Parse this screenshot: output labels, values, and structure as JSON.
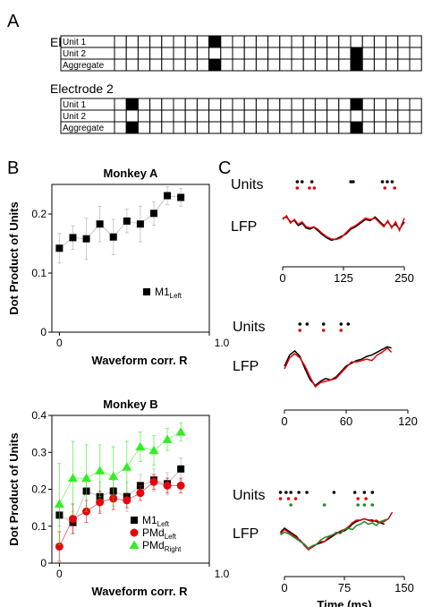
{
  "panel_labels": [
    "A",
    "B",
    "C"
  ],
  "panel_a": {
    "electrodes": [
      {
        "title": "Electrode 1",
        "rows": [
          {
            "label": "Unit 1",
            "filled": [
              8
            ]
          },
          {
            "label": "Unit 2",
            "filled": [
              20
            ]
          },
          {
            "label": "Aggregate",
            "filled": [
              8,
              20
            ]
          }
        ]
      },
      {
        "title": "Electrode 2",
        "rows": [
          {
            "label": "Unit 1",
            "filled": [
              1,
              20
            ]
          },
          {
            "label": "Unit 2",
            "filled": []
          },
          {
            "label": "Aggregate",
            "filled": [
              1,
              20
            ]
          }
        ]
      }
    ],
    "n_cells": 26
  },
  "chart_data": [
    {
      "type": "scatter",
      "title": "Monkey A",
      "xlabel": "Waveform corr. R",
      "ylabel": "Dot Product of Units",
      "xlim": [
        -0.05,
        1.0
      ],
      "ylim": [
        0,
        0.25
      ],
      "xticks": [
        "0",
        "1.0"
      ],
      "yticks": [
        "0",
        "0.1",
        "0.2"
      ],
      "series": [
        {
          "name": "M1",
          "name_sub": "Left",
          "color": "#000000",
          "marker": "square",
          "x": [
            0.0,
            0.09,
            0.18,
            0.27,
            0.36,
            0.45,
            0.54,
            0.63,
            0.72,
            0.81
          ],
          "y": [
            0.142,
            0.16,
            0.158,
            0.183,
            0.161,
            0.188,
            0.183,
            0.201,
            0.231,
            0.228
          ],
          "err": [
            0.025,
            0.02,
            0.035,
            0.03,
            0.03,
            0.02,
            0.03,
            0.02,
            0.015,
            0.015
          ]
        }
      ]
    },
    {
      "type": "scatter",
      "title": "Monkey B",
      "xlabel": "Waveform corr. R",
      "ylabel": "Dot Product of Units",
      "xlim": [
        -0.05,
        1.0
      ],
      "ylim": [
        0,
        0.4
      ],
      "xticks": [
        "0",
        "1.0"
      ],
      "yticks": [
        "0",
        "0.1",
        "0.2",
        "0.3",
        "0.4"
      ],
      "series": [
        {
          "name": "M1",
          "name_sub": "Left",
          "color": "#000000",
          "marker": "square",
          "x": [
            0.0,
            0.09,
            0.18,
            0.27,
            0.36,
            0.45,
            0.54,
            0.63,
            0.72,
            0.81
          ],
          "y": [
            0.13,
            0.11,
            0.195,
            0.18,
            0.195,
            0.18,
            0.21,
            0.225,
            0.215,
            0.255
          ],
          "err": [
            0.03,
            0.03,
            0.04,
            0.04,
            0.03,
            0.04,
            0.03,
            0.03,
            0.03,
            0.03
          ]
        },
        {
          "name": "PMd",
          "name_sub": "Left",
          "color": "#e8000b",
          "marker": "circle",
          "x": [
            0.0,
            0.09,
            0.18,
            0.27,
            0.36,
            0.45,
            0.54,
            0.63,
            0.72,
            0.81
          ],
          "y": [
            0.045,
            0.12,
            0.14,
            0.165,
            0.175,
            0.17,
            0.19,
            0.22,
            0.21,
            0.21
          ],
          "err": [
            0.04,
            0.04,
            0.03,
            0.03,
            0.03,
            0.02,
            0.02,
            0.02,
            0.02,
            0.02
          ]
        },
        {
          "name": "PMd",
          "name_sub": "Right",
          "color": "#33ee22",
          "marker": "triangle",
          "x": [
            0.0,
            0.09,
            0.18,
            0.27,
            0.36,
            0.45,
            0.54,
            0.63,
            0.72,
            0.81
          ],
          "y": [
            0.16,
            0.23,
            0.23,
            0.25,
            0.235,
            0.26,
            0.315,
            0.305,
            0.335,
            0.355
          ],
          "err": [
            0.11,
            0.1,
            0.09,
            0.07,
            0.08,
            0.07,
            0.04,
            0.04,
            0.03,
            0.025
          ]
        }
      ]
    },
    {
      "type": "line",
      "ylabel_units": "Units",
      "ylabel_lfp": "LFP",
      "xlim": [
        0,
        250
      ],
      "xticks": [
        "0",
        "125",
        "250"
      ],
      "units": [
        {
          "color": "#000000",
          "t": [
            30,
            40,
            60,
            140,
            145,
            205,
            215,
            225
          ]
        },
        {
          "color": "#e8000b",
          "t": [
            30,
            55,
            65,
            210,
            230
          ]
        }
      ],
      "lines": [
        {
          "color": "#000000",
          "t": [
            0,
            8,
            16,
            24,
            32,
            40,
            48,
            56,
            64,
            72,
            80,
            90,
            100,
            110,
            120,
            130,
            140,
            150,
            160,
            170,
            180,
            190,
            200,
            208,
            216,
            224,
            232,
            240,
            250
          ],
          "v": [
            0.45,
            0.5,
            0.3,
            0.35,
            0.15,
            0.25,
            0.05,
            0.0,
            0.08,
            -0.05,
            -0.2,
            -0.35,
            -0.45,
            -0.4,
            -0.3,
            -0.2,
            0.0,
            0.1,
            0.25,
            0.4,
            0.35,
            0.5,
            0.3,
            0.15,
            0.3,
            0.1,
            0.2,
            0.0,
            0.3
          ]
        },
        {
          "color": "#e8000b",
          "t": [
            0,
            8,
            16,
            24,
            32,
            40,
            48,
            56,
            64,
            72,
            80,
            90,
            100,
            110,
            120,
            130,
            140,
            150,
            160,
            170,
            180,
            190,
            200,
            208,
            216,
            224,
            232,
            240,
            250
          ],
          "v": [
            0.4,
            0.55,
            0.25,
            0.4,
            0.2,
            0.3,
            0.1,
            0.05,
            0.1,
            0.0,
            -0.15,
            -0.3,
            -0.4,
            -0.42,
            -0.35,
            -0.15,
            0.05,
            0.15,
            0.3,
            0.45,
            0.4,
            0.45,
            0.25,
            0.1,
            0.35,
            0.05,
            0.3,
            -0.05,
            0.45
          ]
        }
      ]
    },
    {
      "type": "line",
      "ylabel_units": "Units",
      "ylabel_lfp": "LFP",
      "xlim": [
        0,
        120
      ],
      "xticks": [
        "0",
        "60",
        "120"
      ],
      "units": [
        {
          "color": "#000000",
          "t": [
            15,
            22,
            38,
            55,
            62
          ]
        },
        {
          "color": "#e8000b",
          "t": [
            15,
            38,
            55
          ]
        }
      ],
      "lines": [
        {
          "color": "#000000",
          "t": [
            0,
            5,
            10,
            15,
            20,
            25,
            30,
            35,
            40,
            45,
            50,
            55,
            60,
            65,
            70,
            75,
            80,
            85,
            90,
            95,
            100,
            104
          ],
          "v": [
            0.1,
            0.5,
            0.65,
            0.45,
            0.0,
            -0.4,
            -0.6,
            -0.45,
            -0.35,
            -0.4,
            -0.3,
            -0.1,
            0.1,
            0.2,
            0.3,
            0.35,
            0.45,
            0.5,
            0.6,
            0.7,
            0.8,
            0.75
          ]
        },
        {
          "color": "#e8000b",
          "t": [
            0,
            5,
            10,
            15,
            20,
            25,
            30,
            35,
            40,
            45,
            50,
            55,
            60,
            65,
            70,
            75,
            80,
            85,
            90,
            95,
            100,
            104
          ],
          "v": [
            0.0,
            0.4,
            0.55,
            0.4,
            0.1,
            -0.3,
            -0.65,
            -0.5,
            -0.45,
            -0.4,
            -0.35,
            -0.15,
            0.05,
            0.25,
            0.25,
            0.3,
            0.35,
            0.3,
            0.5,
            0.6,
            0.75,
            0.6
          ]
        }
      ]
    },
    {
      "type": "line",
      "ylabel_units": "Units",
      "ylabel_lfp": "LFP",
      "xlabel": "Time (ms)",
      "xlim": [
        0,
        150
      ],
      "xticks": [
        "0",
        "75",
        "150"
      ],
      "units": [
        {
          "color": "#000000",
          "t": [
            -5,
            2,
            8,
            18,
            28,
            62,
            88,
            100,
            110
          ]
        },
        {
          "color": "#e8000b",
          "t": [
            -5,
            5,
            14,
            92,
            102
          ]
        },
        {
          "color": "#1a8c2e",
          "t": [
            8,
            50,
            92,
            100,
            110
          ]
        }
      ],
      "lines": [
        {
          "color": "#000000",
          "t": [
            -5,
            0,
            5,
            10,
            15,
            20,
            25,
            30,
            35,
            40,
            45,
            50,
            55,
            60,
            65,
            70,
            75,
            80,
            85,
            90,
            95,
            100,
            105,
            110,
            115,
            120,
            125
          ],
          "v": [
            0.15,
            0.3,
            0.2,
            0.1,
            0.0,
            -0.2,
            -0.3,
            -0.45,
            -0.4,
            -0.3,
            -0.25,
            -0.2,
            -0.1,
            0.0,
            0.1,
            0.15,
            0.2,
            0.3,
            0.45,
            0.55,
            0.6,
            0.65,
            0.6,
            0.6,
            0.55,
            0.5,
            0.45
          ]
        },
        {
          "color": "#e8000b",
          "t": [
            -5,
            0,
            5,
            10,
            15,
            20,
            25,
            30,
            35,
            40,
            45,
            50,
            55,
            60,
            65,
            70,
            75,
            80,
            85,
            90,
            95,
            100,
            105,
            110,
            115,
            120,
            125,
            130,
            135
          ],
          "v": [
            0.1,
            0.25,
            0.15,
            0.05,
            -0.05,
            -0.15,
            -0.35,
            -0.5,
            -0.4,
            -0.3,
            -0.2,
            -0.2,
            -0.05,
            0.05,
            0.1,
            0.2,
            0.25,
            0.35,
            0.5,
            0.6,
            0.6,
            0.65,
            0.6,
            0.55,
            0.6,
            0.5,
            0.55,
            0.65,
            0.9
          ]
        },
        {
          "color": "#1a8c2e",
          "t": [
            -5,
            0,
            5,
            10,
            15,
            20,
            25,
            30,
            35,
            40,
            45,
            50,
            55,
            60,
            65,
            70,
            75,
            80,
            85,
            90,
            95,
            100,
            105,
            110,
            115,
            120,
            125,
            130
          ],
          "v": [
            0.05,
            0.15,
            0.1,
            0.0,
            -0.1,
            -0.2,
            -0.3,
            -0.45,
            -0.35,
            -0.3,
            -0.15,
            -0.05,
            0.0,
            0.05,
            0.15,
            0.1,
            0.25,
            0.3,
            0.25,
            0.4,
            0.45,
            0.55,
            0.45,
            0.5,
            0.4,
            0.55,
            0.6,
            0.65
          ]
        }
      ]
    }
  ]
}
